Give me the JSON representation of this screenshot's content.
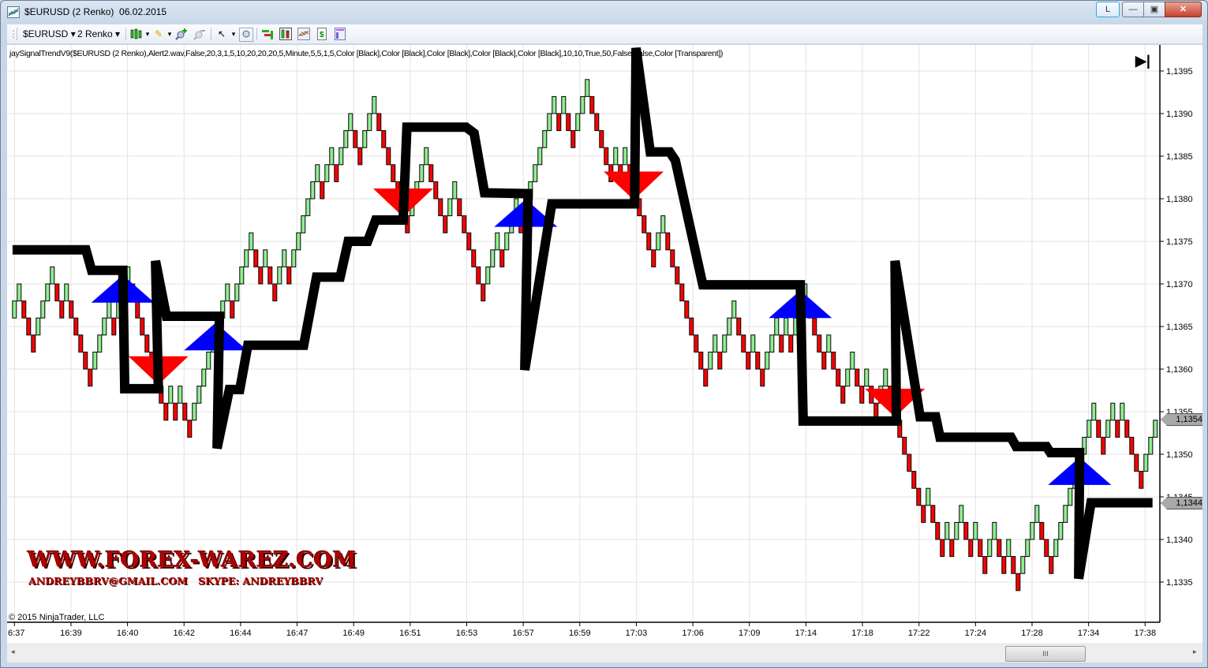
{
  "window": {
    "title": "$EURUSD (2 Renko)  06.02.2015",
    "buttons": {
      "layout": "L",
      "minimize": "—",
      "maximize": "▣",
      "close": "✕"
    }
  },
  "toolbar": {
    "instrument": "$EURUSD",
    "period": "2 Renko",
    "dropdown_glyph": "▾",
    "icons": [
      "bar-type-icon",
      "pencil-draw-icon",
      "zoom-in-icon",
      "zoom-out-icon",
      "pointer-icon",
      "magnifier-icon",
      "properties-icon",
      "data-box-icon",
      "indicators-icon",
      "strategies-icon",
      "templates-icon"
    ]
  },
  "chart": {
    "indicator_label": "jaySignalTrendV9($EURUSD (2 Renko),Alert2.wav,False,20,3,1,5,10,20,20,20,5,Minute,5,5,1,5,Color [Black],Color [Black],Color [Black],Color [Black],Color [Black],10,10,True,50,False,False,Color [Transparent])",
    "go_to_end_glyph": "▶|",
    "copyright": "© 2015 NinjaTrader, LLC",
    "watermark": {
      "line1": "WWW.FOREX-WAREZ.COM",
      "line2": "ANDREYBBRV@GMAIL.COM   SKYPE: ANDREYBBRV"
    },
    "price_markers": [
      {
        "label": "1,1354",
        "value": 1.1354
      },
      {
        "label": "1,1344",
        "value": 1.1344
      }
    ]
  },
  "scrollbar": {
    "left": "◂",
    "right": "▸",
    "grip": "III"
  },
  "chart_data": {
    "type": "bar",
    "bar_style": "renko",
    "brick_size": 0.0002,
    "colors": {
      "up": "#90ee90",
      "down": "#ff0000",
      "outline": "#000000",
      "trend_line": "#000000",
      "buy_signal": "#0000ff",
      "sell_signal": "#ff0000",
      "grid": "#e3e3e3"
    },
    "ylim": [
      1.13295,
      1.13995
    ],
    "yticks": [
      1.1395,
      1.139,
      1.1385,
      1.138,
      1.1375,
      1.137,
      1.1365,
      1.136,
      1.1355,
      1.135,
      1.1345,
      1.134,
      1.1335
    ],
    "ytick_labels": [
      "1,1395",
      "1,1390",
      "1,1385",
      "1,1380",
      "1,1375",
      "1,1370",
      "1,1365",
      "1,1360",
      "1,1355",
      "1,1350",
      "1,1345",
      "1,1340",
      "1,1335"
    ],
    "xtick_labels": [
      "6:37",
      "16:39",
      "16:40",
      "16:42",
      "16:44",
      "16:47",
      "16:49",
      "16:51",
      "16:53",
      "16:57",
      "16:59",
      "17:03",
      "17:06",
      "17:09",
      "17:14",
      "17:18",
      "17:22",
      "17:24",
      "17:28",
      "17:34",
      "17:38"
    ],
    "grid": true,
    "brick_dir": "GGRRRGGGGRRGRRRRRGGGGRGGGRRRRRRRRGRGRRGGGGGGGGRGGGGRRGRRGGRGGGGGGRGGRGGGRRGGGRRRRRRRGGGGRRRRGGRRRRRRGGGRGGGRGGGGGGGRGRRGGGRRRRRGRGRRRRRRGGRRRRRRRRRGGRGGGRRRGRRGGGRGRGGGRRRRGRRRGGRRGRRGGRRRRRRRRGRRRGRGGRRGRRGGRRGRRGGGGRRRGGGGGGGGGRRGGRGRRRRGGG",
    "brick_high": [
      1.1368,
      1.137,
      1.1368,
      1.1366,
      1.1364,
      1.1366,
      1.1368,
      1.137,
      1.1372,
      1.137,
      1.1368,
      1.137,
      1.1368,
      1.1366,
      1.1364,
      1.1362,
      1.136,
      1.1362,
      1.1364,
      1.1366,
      1.1368,
      1.1366,
      1.1368,
      1.137,
      1.1372,
      1.137,
      1.1368,
      1.1366,
      1.1364,
      1.1362,
      1.136,
      1.1358,
      1.1356,
      1.1358,
      1.1356,
      1.1358,
      1.1356,
      1.1354,
      1.1356,
      1.1358,
      1.136,
      1.1362,
      1.1364,
      1.1366,
      1.1368,
      1.137,
      1.1368,
      1.137,
      1.1372,
      1.1374,
      1.1376,
      1.1374,
      1.1372,
      1.1374,
      1.1372,
      1.137,
      1.1372,
      1.1374,
      1.1372,
      1.1374,
      1.1376,
      1.1378,
      1.138,
      1.1382,
      1.1384,
      1.1382,
      1.1384,
      1.1386,
      1.1384,
      1.1386,
      1.1388,
      1.139,
      1.1388,
      1.1386,
      1.1388,
      1.139,
      1.1392,
      1.139,
      1.1388,
      1.1386,
      1.1384,
      1.1382,
      1.138,
      1.1378,
      1.138,
      1.1382,
      1.1384,
      1.1386,
      1.1384,
      1.1382,
      1.138,
      1.1378,
      1.138,
      1.1382,
      1.138,
      1.1378,
      1.1376,
      1.1374,
      1.1372,
      1.137,
      1.1372,
      1.1374,
      1.1376,
      1.1374,
      1.1376,
      1.1378,
      1.138,
      1.1378,
      1.138,
      1.1382,
      1.1384,
      1.1386,
      1.1388,
      1.139,
      1.1392,
      1.139,
      1.1392,
      1.139,
      1.1388,
      1.139,
      1.1392,
      1.1394,
      1.1392,
      1.139,
      1.1388,
      1.1386,
      1.1384,
      1.1386,
      1.1384,
      1.1386,
      1.1384,
      1.1382,
      1.138,
      1.1378,
      1.1376,
      1.1374,
      1.1376,
      1.1378,
      1.1376,
      1.1374,
      1.1372,
      1.137,
      1.1368,
      1.1366,
      1.1364,
      1.1362,
      1.136,
      1.1362,
      1.1364,
      1.1362,
      1.1364,
      1.1366,
      1.1368,
      1.1366,
      1.1364,
      1.1362,
      1.1364,
      1.1362,
      1.136,
      1.1362,
      1.1364,
      1.1366,
      1.1364,
      1.1366,
      1.1364,
      1.1366,
      1.1368,
      1.137,
      1.1368,
      1.1366,
      1.1364,
      1.1362,
      1.1364,
      1.1362,
      1.136,
      1.1358,
      1.136,
      1.1362,
      1.136,
      1.1358,
      1.136,
      1.1358,
      1.1356,
      1.1358,
      1.136,
      1.1358,
      1.1356,
      1.1354,
      1.1352,
      1.135,
      1.1348,
      1.1346,
      1.1344,
      1.1346,
      1.1344,
      1.1342,
      1.134,
      1.1342,
      1.134,
      1.1342,
      1.1344,
      1.1342,
      1.134,
      1.1342,
      1.134,
      1.1338,
      1.134,
      1.1342,
      1.134,
      1.1338,
      1.134,
      1.1338,
      1.1336,
      1.1338,
      1.134,
      1.1342,
      1.1344,
      1.1342,
      1.134,
      1.1338,
      1.134,
      1.1342,
      1.1344,
      1.1346,
      1.1348,
      1.135,
      1.1352,
      1.1354,
      1.1356,
      1.1354,
      1.1352,
      1.1354,
      1.1356,
      1.1354,
      1.1356,
      1.1354,
      1.1352,
      1.135,
      1.1348,
      1.135,
      1.1352,
      1.1354
    ],
    "trend_line": [
      [
        -0.4,
        1.1374
      ],
      [
        15.1,
        1.1374
      ],
      [
        16.3,
        1.13716
      ],
      [
        22.9,
        1.13716
      ],
      [
        23.3,
        1.13577
      ],
      [
        30.4,
        1.13577
      ],
      [
        29.8,
        1.13727
      ],
      [
        32.1,
        1.13662
      ],
      [
        43.3,
        1.13662
      ],
      [
        42.8,
        1.13507
      ],
      [
        45.4,
        1.13576
      ],
      [
        47.6,
        1.13576
      ],
      [
        49.3,
        1.13628
      ],
      [
        61.1,
        1.13628
      ],
      [
        63.8,
        1.13708
      ],
      [
        68.8,
        1.13708
      ],
      [
        70.5,
        1.1375
      ],
      [
        74.6,
        1.1375
      ],
      [
        76.3,
        1.13775
      ],
      [
        82.1,
        1.13775
      ],
      [
        82.9,
        1.13884
      ],
      [
        95.4,
        1.13884
      ],
      [
        97.1,
        1.13877
      ],
      [
        99.3,
        1.13807
      ],
      [
        108.5,
        1.13806
      ],
      [
        107.8,
        1.13599
      ],
      [
        113.5,
        1.13794
      ],
      [
        131.0,
        1.13794
      ],
      [
        131.3,
        1.13977
      ],
      [
        134.3,
        1.13855
      ],
      [
        138.4,
        1.13855
      ],
      [
        139.6,
        1.13845
      ],
      [
        145.4,
        1.13699
      ],
      [
        166.0,
        1.13699
      ],
      [
        166.6,
        1.13539
      ],
      [
        186.3,
        1.13539
      ],
      [
        186.0,
        1.13727
      ],
      [
        191.3,
        1.13544
      ],
      [
        194.6,
        1.13544
      ],
      [
        195.5,
        1.1352
      ],
      [
        210.5,
        1.1352
      ],
      [
        211.6,
        1.13509
      ],
      [
        218.0,
        1.13509
      ],
      [
        218.8,
        1.13502
      ],
      [
        225.0,
        1.13502
      ],
      [
        224.8,
        1.13354
      ],
      [
        227.4,
        1.13443
      ],
      [
        240.4,
        1.13443
      ]
    ],
    "signals": [
      {
        "type": "buy",
        "bar": 22.9,
        "price": 1.13678
      },
      {
        "type": "sell",
        "bar": 30.4,
        "price": 1.13615
      },
      {
        "type": "buy",
        "bar": 42.5,
        "price": 1.13622
      },
      {
        "type": "sell",
        "bar": 82.1,
        "price": 1.13812
      },
      {
        "type": "buy",
        "bar": 108,
        "price": 1.13767
      },
      {
        "type": "sell",
        "bar": 130.8,
        "price": 1.13832
      },
      {
        "type": "buy",
        "bar": 166,
        "price": 1.1366
      },
      {
        "type": "sell",
        "bar": 186,
        "price": 1.13577
      },
      {
        "type": "buy",
        "bar": 225,
        "price": 1.13464
      }
    ]
  }
}
